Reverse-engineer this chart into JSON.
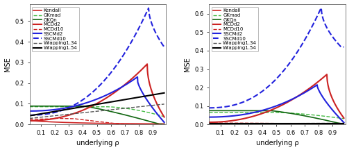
{
  "legend_labels": [
    "Kendall",
    "GKmad",
    "GKQn",
    "MCDd2",
    "MCDd10",
    "SSCMd2",
    "SSCMd10",
    "Wrapping1.34",
    "Wrapping1.54"
  ],
  "colors": [
    "#cc2222",
    "#44bb44",
    "#116611",
    "#cc2222",
    "#cc2222",
    "#2222dd",
    "#2222dd",
    "#555555",
    "#000000"
  ],
  "linestyles": [
    "-",
    "--",
    "-",
    "-",
    "--",
    "-",
    "--",
    "--",
    "-"
  ],
  "linewidths": [
    1.2,
    1.0,
    1.2,
    1.5,
    1.0,
    1.5,
    1.5,
    1.0,
    1.5
  ],
  "xlabel": "underlying ρ",
  "ylabel": "MSE",
  "ylim_left": [
    0,
    0.58
  ],
  "ylim_right": [
    0,
    0.65
  ],
  "yticks_left": [
    0.0,
    0.1,
    0.2,
    0.3,
    0.4,
    0.5
  ],
  "yticks_right": [
    0.0,
    0.1,
    0.2,
    0.3,
    0.4,
    0.5,
    0.6
  ],
  "xticks": [
    0.1,
    0.2,
    0.3,
    0.4,
    0.5,
    0.6,
    0.7,
    0.8,
    0.9
  ],
  "xlim": [
    0.02,
    0.99
  ],
  "background": "#ffffff"
}
